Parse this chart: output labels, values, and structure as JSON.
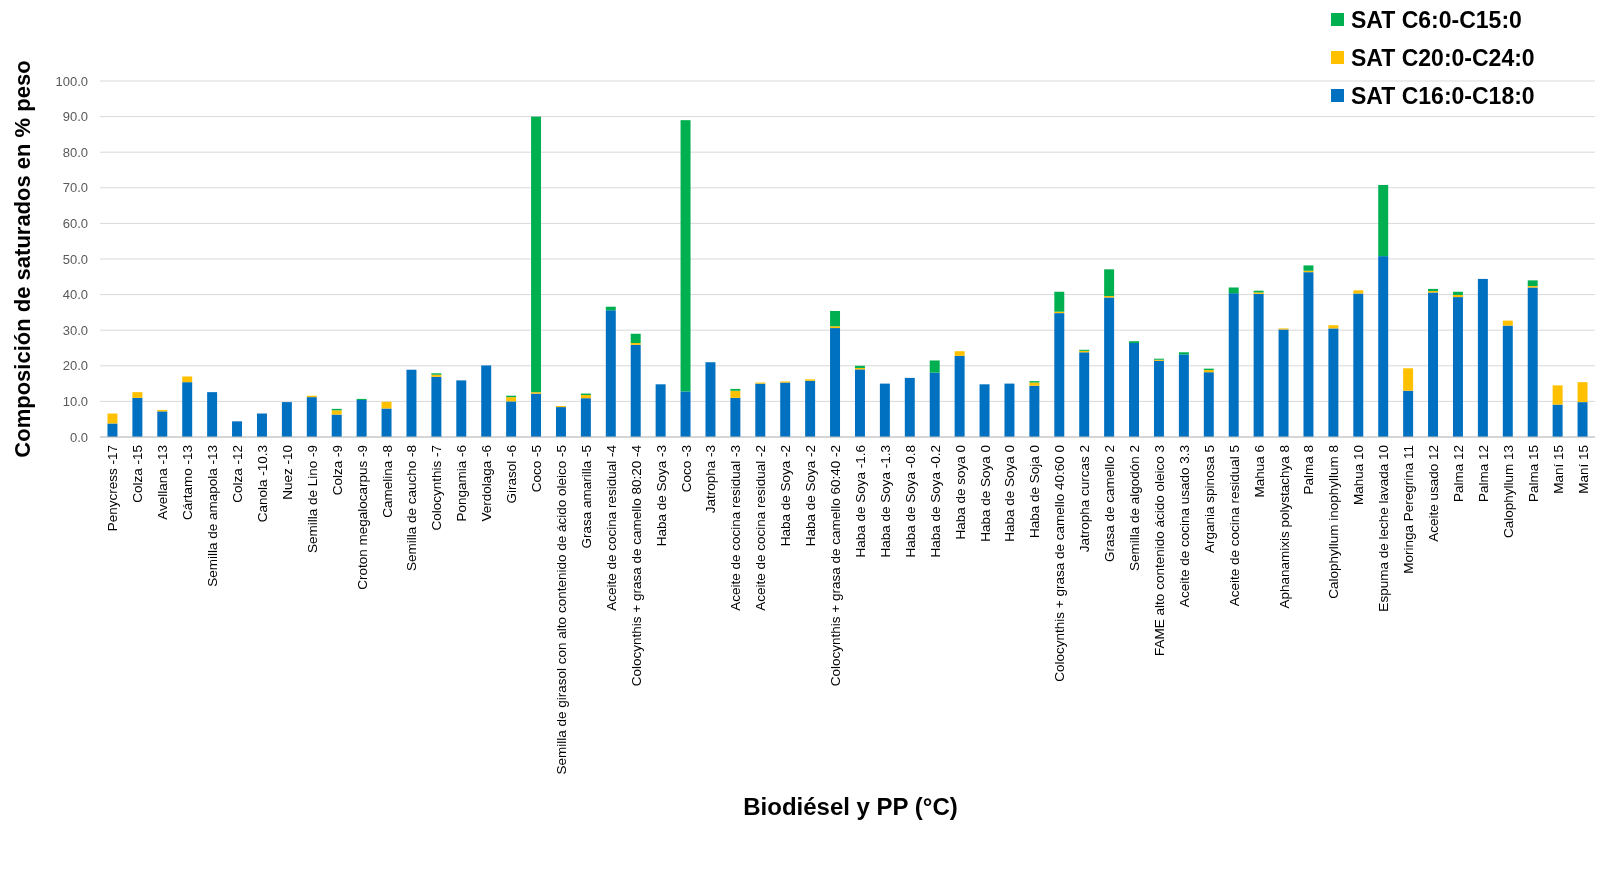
{
  "chart_data": {
    "type": "bar",
    "stacked": true,
    "xlabel": "Biodiésel y PP (°C)",
    "ylabel": "Composición de saturados en % peso",
    "categories": [
      "Penycress -17",
      "Colza -15",
      "Avellana -13",
      "Cártamo -13",
      "Semilla de amapola -13",
      "Colza -12",
      "Canola -10.3",
      "Nuez -10",
      "Semilla de Lino -9",
      "Colza -9",
      "Croton megalocarpus -9",
      "Camelina -8",
      "Semilla de caucho -8",
      "Colocynthis -7",
      "Pongamia -6",
      "Verdolaga -6",
      "Girasol -6",
      "Coco -5",
      "Semilla de girasol con alto contenido de ácido oleico -5",
      "Grasa amarilla -5",
      "Aceite de cocina residual -4",
      "Colocynthis + grasa de camello 80:20 -4",
      "Haba de Soya -3",
      "Coco -3",
      "Jatropha -3",
      "Aceite de cocina residual -3",
      "Aceite de cocina residual -2",
      "Haba de Soya -2",
      "Haba de Soya -2",
      "Colocynthis + grasa de camello 60:40 -2",
      "Haba de Soya -1.6",
      "Haba de Soya -1.3",
      "Haba de Soya -0.8",
      "Haba de Soya -0.2",
      "Haba de soya 0",
      "Haba de Soya 0",
      "Haba de Soya 0",
      "Haba de Soja 0",
      "Colocynthis + grasa de camello 40:60 0",
      "Jatropha curcas 2",
      "Grasa de camello 2",
      "Semilla de algodón 2",
      "FAME alto contenido ácido oleico 3",
      "Aceite de cocina usado 3.3",
      "Argania spinosa 5",
      "Aceite de cocina residual 5",
      "Mahua 6",
      "Aphanamixis polystachya 8",
      "Palma 8",
      "Calophyllum inophyllum 8",
      "Mahua 10",
      "Espuma de leche lavada 10",
      "Moringa Peregrina 11",
      "Aceite usado 12",
      "Palma 12",
      "Palma 12",
      "Calophyllum 13",
      "Palma 15",
      "Maní 15",
      "Maní 15"
    ],
    "series": [
      {
        "name": "SAT C16:0-C18:0",
        "color": "#0070c0",
        "values": [
          3.8,
          11,
          7.2,
          15.4,
          12.6,
          4.4,
          6.6,
          9.8,
          11.2,
          6.3,
          10.4,
          8,
          18.9,
          16.9,
          15.9,
          20.1,
          10,
          12.2,
          8.4,
          10.9,
          35.6,
          25.9,
          14.8,
          12.8,
          21,
          11,
          15,
          15.3,
          15.8,
          30.6,
          19,
          15,
          16.6,
          18.1,
          22.8,
          14.8,
          15,
          14.4,
          34.8,
          23.8,
          39.2,
          26.4,
          21.4,
          23.2,
          18.2,
          40.4,
          40.2,
          30.2,
          46.3,
          30.5,
          40.3,
          50.8,
          13,
          40.6,
          39.3,
          44.4,
          31.3,
          42,
          9.1,
          9.8
        ]
      },
      {
        "name": "SAT C20:0-C24:0",
        "color": "#ffc000",
        "values": [
          2.8,
          1.6,
          0.4,
          1.6,
          0,
          0,
          0,
          0,
          0.4,
          1.2,
          0,
          1.9,
          0,
          0.6,
          0,
          0,
          1.2,
          0.4,
          0.3,
          0.9,
          0,
          0.5,
          0,
          0,
          0,
          2,
          0.3,
          0.3,
          0.4,
          0.5,
          0.4,
          0,
          0,
          0,
          1.3,
          0,
          0,
          0.9,
          0.4,
          0.4,
          0.4,
          0,
          0.3,
          0,
          0.6,
          0,
          0.4,
          0.3,
          0.4,
          0.9,
          0.9,
          0,
          6.3,
          0.4,
          0.6,
          0,
          1.4,
          0.4,
          5.4,
          5.6
        ]
      },
      {
        "name": "SAT C6:0-C15:0",
        "color": "#00b050",
        "values": [
          0,
          0,
          0,
          0,
          0,
          0,
          0,
          0,
          0,
          0.4,
          0.3,
          0,
          0,
          0.4,
          0,
          0,
          0.4,
          77.4,
          0,
          0.4,
          1,
          2.6,
          0,
          76.2,
          0,
          0.5,
          0,
          0,
          0,
          4.3,
          0.6,
          0,
          0,
          3.4,
          0,
          0,
          0,
          0.4,
          5.6,
          0.3,
          7.5,
          0.5,
          0.3,
          0.6,
          0.4,
          1.6,
          0.5,
          0,
          1.5,
          0,
          0,
          20,
          0,
          0.6,
          0.9,
          0,
          0,
          1.6,
          0,
          0
        ]
      }
    ],
    "ylim": [
      0,
      100
    ],
    "yticks": [
      {
        "value": 0,
        "label": "0.0"
      },
      {
        "value": 10,
        "label": "10.0"
      },
      {
        "value": 20,
        "label": "20.0"
      },
      {
        "value": 30,
        "label": "30.0"
      },
      {
        "value": 40,
        "label": "40.0"
      },
      {
        "value": 50,
        "label": "50.0"
      },
      {
        "value": 60,
        "label": "60.0"
      },
      {
        "value": 70,
        "label": "70.0"
      },
      {
        "value": 80,
        "label": "80.0"
      },
      {
        "value": 90,
        "label": "90.0"
      },
      {
        "value": 100,
        "label": "100.0"
      }
    ],
    "grid": "y",
    "legend": "top right"
  }
}
